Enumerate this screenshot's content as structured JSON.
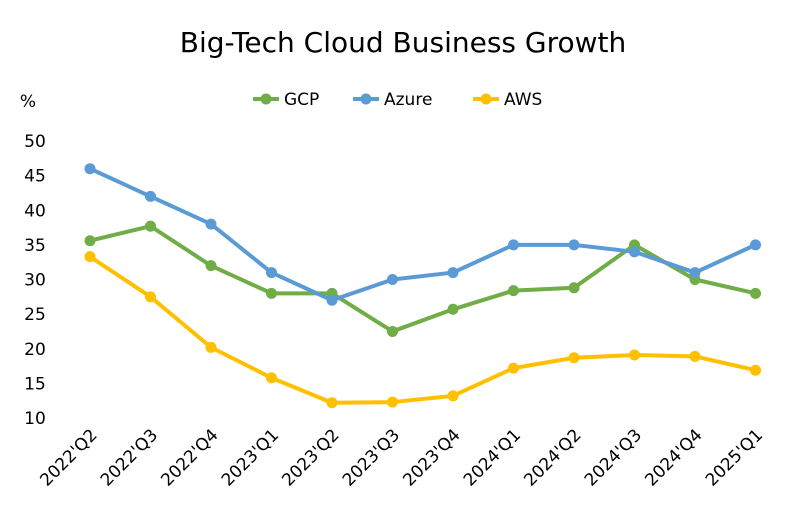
{
  "chart_data": {
    "type": "line",
    "title": "Big-Tech Cloud Business Growth",
    "ylabel": "%",
    "xlabel": "",
    "ylim": [
      10,
      50
    ],
    "yticks": [
      10,
      15,
      20,
      25,
      30,
      35,
      40,
      45,
      50
    ],
    "grid": false,
    "legend_position": "top",
    "categories": [
      "2022'Q2",
      "2022'Q3",
      "2022'Q4",
      "2023'Q1",
      "2023'Q2",
      "2023'Q3",
      "2023'Q4",
      "2024'Q1",
      "2024'Q2",
      "2024'Q3",
      "2024'Q4",
      "2025'Q1"
    ],
    "series": [
      {
        "name": "GCP",
        "color": "#70ad47",
        "values": [
          35.6,
          37.7,
          32.0,
          28.0,
          28.0,
          22.5,
          25.7,
          28.4,
          28.8,
          35.0,
          30.0,
          28.0
        ]
      },
      {
        "name": "Azure",
        "color": "#5b9bd5",
        "values": [
          46.0,
          42.0,
          38.0,
          31.0,
          27.0,
          30.0,
          31.0,
          35.0,
          35.0,
          34.0,
          31.0,
          35.0
        ]
      },
      {
        "name": "AWS",
        "color": "#ffc000",
        "values": [
          33.3,
          27.5,
          20.2,
          15.8,
          12.2,
          12.3,
          13.2,
          17.2,
          18.7,
          19.1,
          18.9,
          16.9
        ]
      }
    ]
  }
}
